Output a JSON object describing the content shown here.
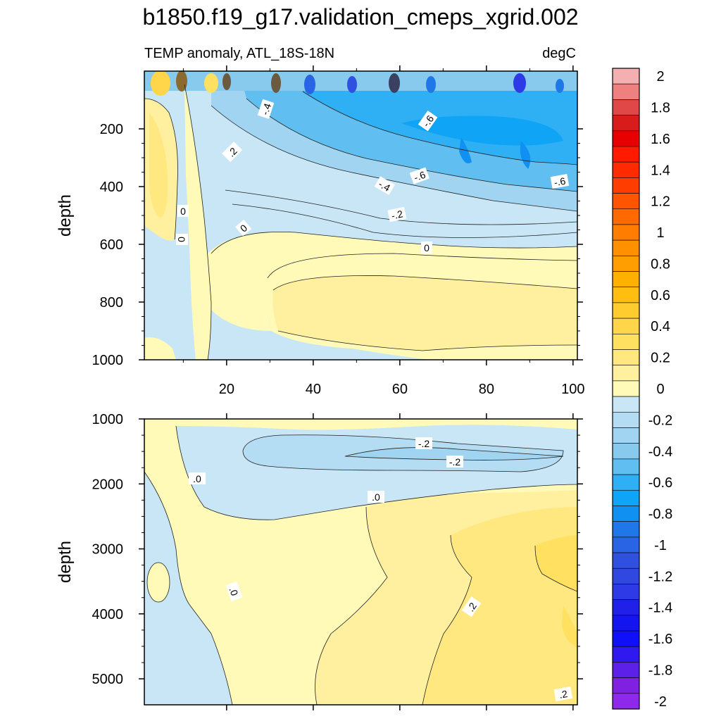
{
  "chart_data": [
    {
      "type": "heatmap",
      "panel": "upper",
      "title": "b1850.f19_g17.validation_cmeps_xgrid.002",
      "subtitle_left": "TEMP anomaly, ATL_18S-18N",
      "subtitle_right": "degC",
      "xlabel": "",
      "ylabel": "depth",
      "xlim": [
        1,
        101
      ],
      "ylim": [
        1000,
        0
      ],
      "x_ticks": [
        20,
        40,
        60,
        80,
        100
      ],
      "y_ticks": [
        200,
        400,
        600,
        800,
        1000
      ],
      "contour_labels": [
        "-.4",
        "-.6",
        ".2",
        "-.6",
        "-.4",
        "-.6",
        "-.2",
        "0",
        "0",
        "0",
        "0"
      ]
    },
    {
      "type": "heatmap",
      "panel": "lower",
      "ylabel": "depth",
      "xlim": [
        1,
        101
      ],
      "ylim": [
        5400,
        1000
      ],
      "y_ticks": [
        1000,
        2000,
        3000,
        4000,
        5000
      ],
      "contour_labels": [
        "-.2",
        "-.2",
        ".0",
        ".0",
        ".0",
        ".2",
        ".2"
      ]
    }
  ],
  "colorbar": {
    "levels": [
      {
        "label": "2",
        "color": "#F4B0B0"
      },
      {
        "label": "",
        "color": "#EF8080"
      },
      {
        "label": "1.8",
        "color": "#E04848"
      },
      {
        "label": "",
        "color": "#D81C1C"
      },
      {
        "label": "1.6",
        "color": "#E80000"
      },
      {
        "label": "",
        "color": "#FF1A00"
      },
      {
        "label": "1.4",
        "color": "#FF2B00"
      },
      {
        "label": "",
        "color": "#FF3D00"
      },
      {
        "label": "1.2",
        "color": "#FF5400"
      },
      {
        "label": "",
        "color": "#FF6A00"
      },
      {
        "label": "1",
        "color": "#FF7D00"
      },
      {
        "label": "",
        "color": "#FF9000"
      },
      {
        "label": "0.8",
        "color": "#FF9E00"
      },
      {
        "label": "",
        "color": "#FFB000"
      },
      {
        "label": "0.6",
        "color": "#FFBE10"
      },
      {
        "label": "",
        "color": "#FFCC30"
      },
      {
        "label": "0.4",
        "color": "#FFD64A"
      },
      {
        "label": "",
        "color": "#FFE060"
      },
      {
        "label": "0.2",
        "color": "#FFE880"
      },
      {
        "label": "",
        "color": "#FFF0A0"
      },
      {
        "label": "0",
        "color": "#FFFAB8"
      },
      {
        "label": "",
        "color": "#C8E6F6"
      },
      {
        "label": "-0.2",
        "color": "#B4DCF2"
      },
      {
        "label": "",
        "color": "#A0D4F0"
      },
      {
        "label": "-0.4",
        "color": "#88CAEE"
      },
      {
        "label": "",
        "color": "#60BEF0"
      },
      {
        "label": "-0.6",
        "color": "#30B0F4"
      },
      {
        "label": "",
        "color": "#10A4F6"
      },
      {
        "label": "-0.8",
        "color": "#1090F0"
      },
      {
        "label": "",
        "color": "#2078E8"
      },
      {
        "label": "-1",
        "color": "#2864E4"
      },
      {
        "label": "",
        "color": "#3050E0"
      },
      {
        "label": "-1.2",
        "color": "#3048E0"
      },
      {
        "label": "",
        "color": "#2E3AE6"
      },
      {
        "label": "-1.4",
        "color": "#2020E8"
      },
      {
        "label": "",
        "color": "#1414F0"
      },
      {
        "label": "-1.6",
        "color": "#1010F8"
      },
      {
        "label": "",
        "color": "#3018F0"
      },
      {
        "label": "-1.8",
        "color": "#5C20E8"
      },
      {
        "label": "",
        "color": "#8020E0"
      },
      {
        "label": "-2",
        "color": "#8E28EC"
      }
    ]
  }
}
